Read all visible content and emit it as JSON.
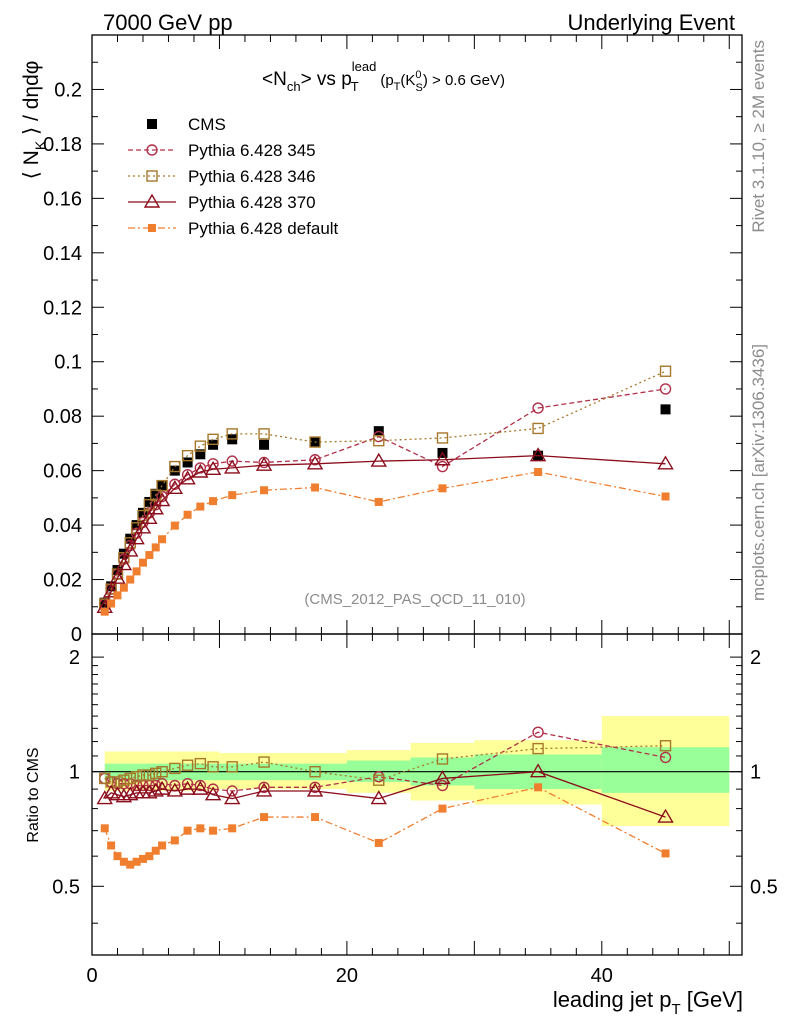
{
  "header": {
    "left": "7000 GeV pp",
    "right": "Underlying Event"
  },
  "side_labels": {
    "rivet": "Rivet 3.1.10, ≥ 2M events",
    "mcplots": "mcplots.cern.ch [arXiv:1306.3436]"
  },
  "chart_data": [
    {
      "panel": "main",
      "type": "scatter",
      "title": "<Nch> vs pT lead (pT(K0S) > 0.6 GeV)",
      "title_parts": {
        "n": "<N",
        "ch": "ch",
        "vs": "> vs p",
        "T": "T",
        "lead": "lead",
        "cut_a": "(p",
        "cut_T": "T",
        "cut_b": "(K",
        "cut_0": "0",
        "cut_S": "S",
        "cut_c": ") > 0.6 GeV)"
      },
      "ylabel": "⟨ N_K ⟩ / dηdφ",
      "ylabel_parts": {
        "a": "⟨ N",
        "k": "K",
        "b": " ⟩ / dηdφ"
      },
      "xlim": [
        0,
        51
      ],
      "ylim": [
        0,
        0.22
      ],
      "yticks": [
        "0",
        "0.02",
        "0.04",
        "0.06",
        "0.08",
        "0.1",
        "0.12",
        "0.14",
        "0.16",
        "0.18",
        "0.2"
      ],
      "annotation": "(CMS_2012_PAS_QCD_11_010)",
      "legend_position": "top-left",
      "x": [
        1.0,
        1.5,
        2.0,
        2.5,
        3.0,
        3.5,
        4.0,
        4.5,
        5.0,
        5.5,
        6.5,
        7.5,
        8.5,
        9.5,
        11.0,
        13.5,
        17.5,
        22.5,
        27.5,
        35.0,
        45.0
      ],
      "series": [
        {
          "name": "CMS",
          "color": "#000000",
          "marker": "filled-square",
          "dash": "none",
          "values": [
            0.0115,
            0.0175,
            0.0235,
            0.0295,
            0.035,
            0.04,
            0.0445,
            0.0485,
            0.0515,
            0.0545,
            0.06,
            0.063,
            0.066,
            0.0695,
            0.0715,
            0.0695,
            0.0705,
            0.0745,
            0.0665,
            0.0655,
            0.0825
          ]
        },
        {
          "name": "Pythia 6.428 345",
          "color": "#b03049",
          "marker": "open-circle",
          "dash": "5,3",
          "values": [
            0.011,
            0.0165,
            0.022,
            0.0275,
            0.0325,
            0.037,
            0.041,
            0.0445,
            0.0475,
            0.0505,
            0.055,
            0.0585,
            0.061,
            0.0625,
            0.0635,
            0.063,
            0.064,
            0.0725,
            0.0615,
            0.083,
            0.09
          ]
        },
        {
          "name": "Pythia 6.428 346",
          "color": "#a6782b",
          "marker": "open-square",
          "dash": "2,3",
          "values": [
            0.011,
            0.0165,
            0.022,
            0.028,
            0.0335,
            0.039,
            0.0435,
            0.0475,
            0.051,
            0.0545,
            0.0615,
            0.0655,
            0.069,
            0.0715,
            0.0735,
            0.0735,
            0.0705,
            0.071,
            0.072,
            0.0755,
            0.0965
          ]
        },
        {
          "name": "Pythia 6.428 370",
          "color": "#8b0d1c",
          "marker": "open-triangle",
          "dash": "none",
          "values": [
            0.0098,
            0.0155,
            0.0205,
            0.0255,
            0.0305,
            0.035,
            0.039,
            0.0425,
            0.046,
            0.049,
            0.0535,
            0.057,
            0.0595,
            0.0605,
            0.061,
            0.062,
            0.0625,
            0.0635,
            0.064,
            0.0655,
            0.0625
          ]
        },
        {
          "name": "Pythia 6.428 default",
          "color": "#ef7e2f",
          "marker": "filled-square-small",
          "dash": "7,3,2,3",
          "values": [
            0.0082,
            0.0112,
            0.0142,
            0.017,
            0.02,
            0.023,
            0.0262,
            0.029,
            0.0318,
            0.0348,
            0.0398,
            0.0438,
            0.0468,
            0.0488,
            0.051,
            0.0528,
            0.0538,
            0.0485,
            0.0535,
            0.0595,
            0.0505
          ]
        }
      ]
    },
    {
      "panel": "ratio",
      "type": "scatter",
      "ylabel": "Ratio to CMS",
      "xlabel": "leading jet p_T [GeV]",
      "xlabel_parts": {
        "a": "leading jet p",
        "T": "T",
        "b": " [GeV]"
      },
      "xlim": [
        0,
        51
      ],
      "ylim": [
        0.33,
        2.3
      ],
      "yscale": "log",
      "xticks": [
        "0",
        "20",
        "40"
      ],
      "yticks": [
        "0.5",
        "1",
        "2"
      ],
      "x": [
        1.0,
        1.5,
        2.0,
        2.5,
        3.0,
        3.5,
        4.0,
        4.5,
        5.0,
        5.5,
        6.5,
        7.5,
        8.5,
        9.5,
        11.0,
        13.5,
        17.5,
        22.5,
        27.5,
        35.0,
        45.0
      ],
      "bands": [
        {
          "x0": 1,
          "x1": 10,
          "inner": [
            0.95,
            1.05
          ],
          "outer": [
            0.89,
            1.13
          ]
        },
        {
          "x0": 10,
          "x1": 20,
          "inner": [
            0.95,
            1.05
          ],
          "outer": [
            0.9,
            1.12
          ]
        },
        {
          "x0": 20,
          "x1": 25,
          "inner": [
            0.94,
            1.07
          ],
          "outer": [
            0.88,
            1.14
          ]
        },
        {
          "x0": 25,
          "x1": 30,
          "inner": [
            0.92,
            1.09
          ],
          "outer": [
            0.84,
            1.19
          ]
        },
        {
          "x0": 30,
          "x1": 40,
          "inner": [
            0.9,
            1.11
          ],
          "outer": [
            0.82,
            1.21
          ]
        },
        {
          "x0": 40,
          "x1": 50,
          "inner": [
            0.88,
            1.16
          ],
          "outer": [
            0.72,
            1.4
          ]
        }
      ],
      "series": [
        {
          "name": "Pythia 6.428 345",
          "values": [
            0.96,
            0.94,
            0.93,
            0.93,
            0.93,
            0.92,
            0.92,
            0.92,
            0.92,
            0.93,
            0.92,
            0.93,
            0.92,
            0.9,
            0.89,
            0.91,
            0.91,
            0.97,
            0.92,
            1.27,
            1.09
          ]
        },
        {
          "name": "Pythia 6.428 346",
          "values": [
            0.96,
            0.94,
            0.94,
            0.95,
            0.96,
            0.97,
            0.98,
            0.98,
            0.99,
            1.0,
            1.02,
            1.04,
            1.05,
            1.03,
            1.03,
            1.06,
            1.0,
            0.95,
            1.08,
            1.15,
            1.17
          ]
        },
        {
          "name": "Pythia 6.428 370",
          "values": [
            0.85,
            0.88,
            0.87,
            0.86,
            0.87,
            0.88,
            0.88,
            0.88,
            0.89,
            0.9,
            0.89,
            0.9,
            0.9,
            0.87,
            0.85,
            0.89,
            0.89,
            0.85,
            0.96,
            1.0,
            0.76
          ]
        },
        {
          "name": "Pythia 6.428 default",
          "values": [
            0.71,
            0.64,
            0.6,
            0.58,
            0.57,
            0.58,
            0.59,
            0.6,
            0.62,
            0.64,
            0.66,
            0.7,
            0.71,
            0.7,
            0.71,
            0.76,
            0.76,
            0.65,
            0.8,
            0.91,
            0.61
          ]
        }
      ]
    }
  ]
}
